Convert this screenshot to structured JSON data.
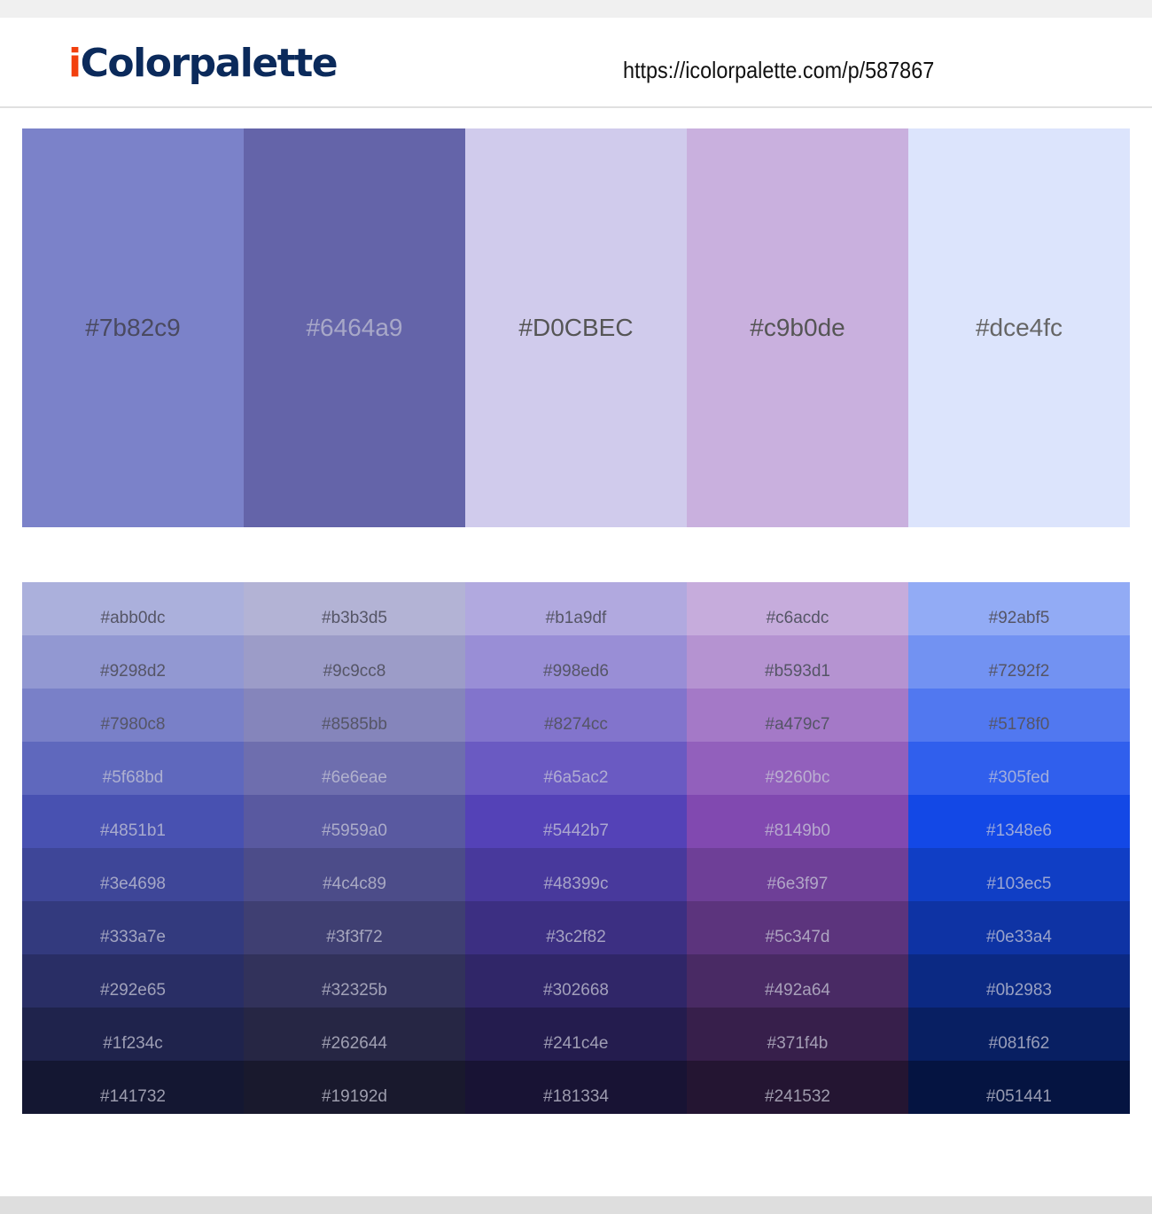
{
  "header": {
    "logo_i": "i",
    "logo_rest": "Colorpalette",
    "url": "https://icolorpalette.com/p/587867"
  },
  "colors": {
    "logo_navy": "#0b2a5b",
    "logo_orange": "#f2400e"
  },
  "main": [
    {
      "label": "#7b82c9",
      "hex": "#7b82c9",
      "text": "#4a4a60"
    },
    {
      "label": "#6464a9",
      "hex": "#6464a9",
      "text": "#a8a8c8"
    },
    {
      "label": "#D0CBEC",
      "hex": "#d0cbec",
      "text": "#555555"
    },
    {
      "label": "#c9b0de",
      "hex": "#c9b0de",
      "text": "#555555"
    },
    {
      "label": "#dce4fc",
      "hex": "#dce4fc",
      "text": "#666666"
    }
  ],
  "shades": [
    [
      "#abb0dc",
      "#9298d2",
      "#7980c8",
      "#5f68bd",
      "#4851b1",
      "#3e4698",
      "#333a7e",
      "#292e65",
      "#1f234c",
      "#141732"
    ],
    [
      "#b3b3d5",
      "#9c9cc8",
      "#8585bb",
      "#6e6eae",
      "#5959a0",
      "#4c4c89",
      "#3f3f72",
      "#32325b",
      "#262644",
      "#19192d"
    ],
    [
      "#b1a9df",
      "#998ed6",
      "#8274cc",
      "#6a5ac2",
      "#5442b7",
      "#48399c",
      "#3c2f82",
      "#302668",
      "#241c4e",
      "#181334"
    ],
    [
      "#c6acdc",
      "#b593d1",
      "#a479c7",
      "#9260bc",
      "#8149b0",
      "#6e3f97",
      "#5c347d",
      "#492a64",
      "#371f4b",
      "#241532"
    ],
    [
      "#92abf5",
      "#7292f2",
      "#5178f0",
      "#305fed",
      "#1348e6",
      "#103ec5",
      "#0e33a4",
      "#0b2983",
      "#081f62",
      "#051441"
    ]
  ]
}
